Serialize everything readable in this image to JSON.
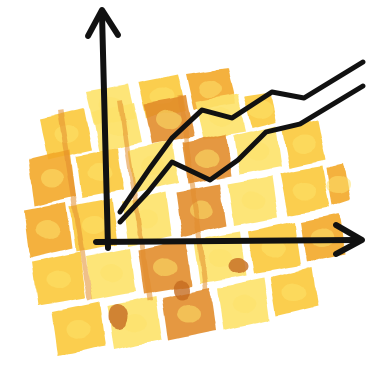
{
  "illustration": {
    "subject": "watercolor-gold-bars-with-rising-line-chart",
    "colors": {
      "background": "#ffffff",
      "gold_light": "#fde26a",
      "gold_mid": "#fbc93a",
      "gold_deep": "#f3a92a",
      "gold_shadow": "#e28d2b",
      "gold_dark": "#c46a22",
      "ink": "#111111"
    },
    "chart": {
      "axes": "x-and-y-arrows",
      "lines": 2,
      "trend": "rising"
    }
  }
}
